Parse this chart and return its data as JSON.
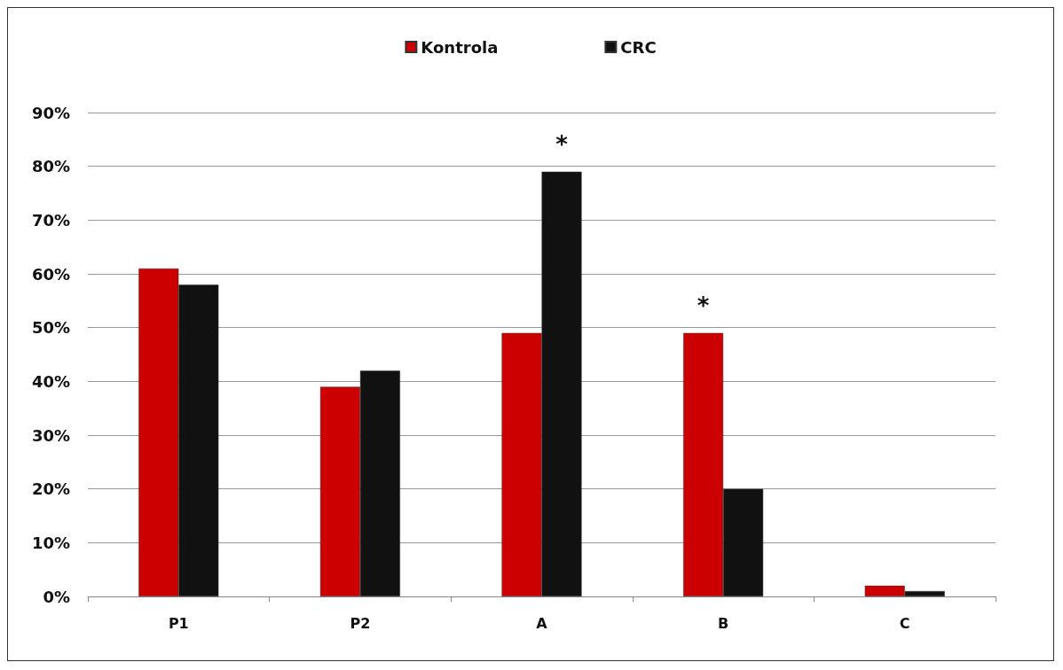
{
  "chart_data": {
    "type": "bar",
    "categories": [
      "P1",
      "P2",
      "A",
      "B",
      "C"
    ],
    "series": [
      {
        "name": "Kontrola",
        "color": "#cc0000",
        "values": [
          61,
          39,
          49,
          49,
          2
        ]
      },
      {
        "name": "CRC",
        "color": "#111111",
        "values": [
          58,
          42,
          79,
          20,
          1
        ]
      }
    ],
    "ylim": [
      0,
      90
    ],
    "yticks": [
      {
        "value": 0,
        "label": "0%"
      },
      {
        "value": 10,
        "label": "10%"
      },
      {
        "value": 20,
        "label": "20%"
      },
      {
        "value": 30,
        "label": "30%"
      },
      {
        "value": 40,
        "label": "40%"
      },
      {
        "value": 50,
        "label": "50%"
      },
      {
        "value": 60,
        "label": "60%"
      },
      {
        "value": 70,
        "label": "70%"
      },
      {
        "value": 80,
        "label": "80%"
      },
      {
        "value": 90,
        "label": "90%"
      }
    ],
    "annotations": [
      {
        "text": "*",
        "x": "A",
        "y": 79
      },
      {
        "text": "*",
        "x": "B",
        "y": 49
      }
    ],
    "grid": "y",
    "legend": "top"
  }
}
